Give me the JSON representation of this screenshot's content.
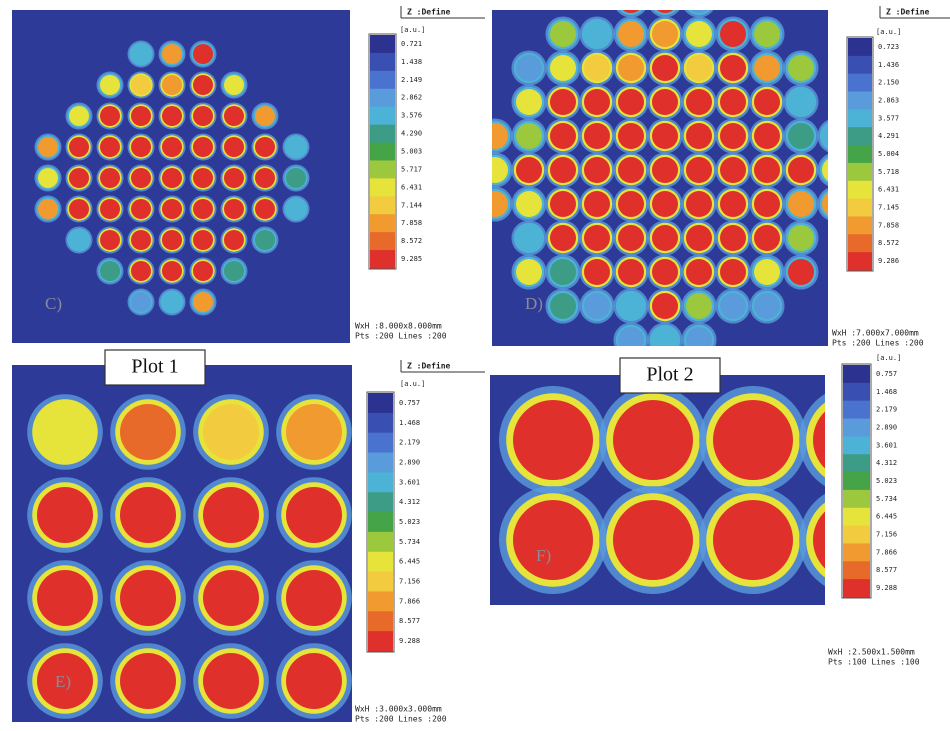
{
  "panels": [
    {
      "letter": "C)",
      "header": "Z :Define",
      "unit": "[a.u.]",
      "scale": [
        "0.721",
        "1.438",
        "2.149",
        "2.862",
        "3.576",
        "4.290",
        "5.003",
        "5.717",
        "6.431",
        "7.144",
        "7.858",
        "8.572",
        "9.285"
      ],
      "size": "WxH :8.000x8.000mm",
      "points": "Pts :200 Lines :200"
    },
    {
      "letter": "D)",
      "header": "Z :Define",
      "unit": "[a.u.]",
      "scale": [
        "0.723",
        "1.436",
        "2.150",
        "2.863",
        "3.577",
        "4.291",
        "5.004",
        "5.718",
        "6.431",
        "7.145",
        "7.858",
        "8.572",
        "9.286"
      ],
      "size": "WxH :7.000x7.000mm",
      "points": "Pts :200 Lines :200"
    },
    {
      "letter": "E)",
      "header": "Z :Define",
      "unit": "[a.u.]",
      "scale": [
        "0.757",
        "1.468",
        "2.179",
        "2.890",
        "3.601",
        "4.312",
        "5.023",
        "5.734",
        "6.445",
        "7.156",
        "7.866",
        "8.577",
        "9.288"
      ],
      "size": "WxH :3.000x3.000mm",
      "points": "Pts :200 Lines :200"
    },
    {
      "letter": "F)",
      "unit": "[a.u.]",
      "scale": [
        "0.757",
        "1.468",
        "2.179",
        "2.890",
        "3.601",
        "4.312",
        "5.023",
        "5.734",
        "6.445",
        "7.156",
        "7.866",
        "8.577",
        "9.288"
      ],
      "size": "WxH :2.500x1.500mm",
      "points": "Pts :100 Lines :100"
    }
  ],
  "plots": [
    "Plot 1",
    "Plot 2"
  ]
}
